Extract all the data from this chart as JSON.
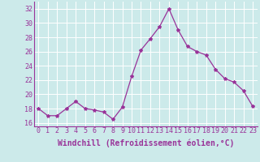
{
  "x": [
    0,
    1,
    2,
    3,
    4,
    5,
    6,
    7,
    8,
    9,
    10,
    11,
    12,
    13,
    14,
    15,
    16,
    17,
    18,
    19,
    20,
    21,
    22,
    23
  ],
  "y": [
    18.0,
    17.0,
    17.0,
    18.0,
    19.0,
    18.0,
    17.8,
    17.5,
    16.5,
    18.2,
    22.5,
    26.2,
    27.8,
    29.5,
    32.0,
    29.0,
    26.7,
    26.0,
    25.5,
    23.5,
    22.2,
    21.7,
    20.5,
    18.3
  ],
  "line_color": "#993399",
  "marker": "*",
  "marker_size": 3,
  "xlabel": "Windchill (Refroidissement éolien,°C)",
  "xlabel_fontsize": 7,
  "ylabel_ticks": [
    16,
    18,
    20,
    22,
    24,
    26,
    28,
    30,
    32
  ],
  "xlim": [
    -0.5,
    23.5
  ],
  "ylim": [
    15.5,
    33.0
  ],
  "background_color": "#cceaea",
  "grid_color": "#ffffff",
  "tick_color": "#993399",
  "label_color": "#993399",
  "tick_fontsize": 6
}
